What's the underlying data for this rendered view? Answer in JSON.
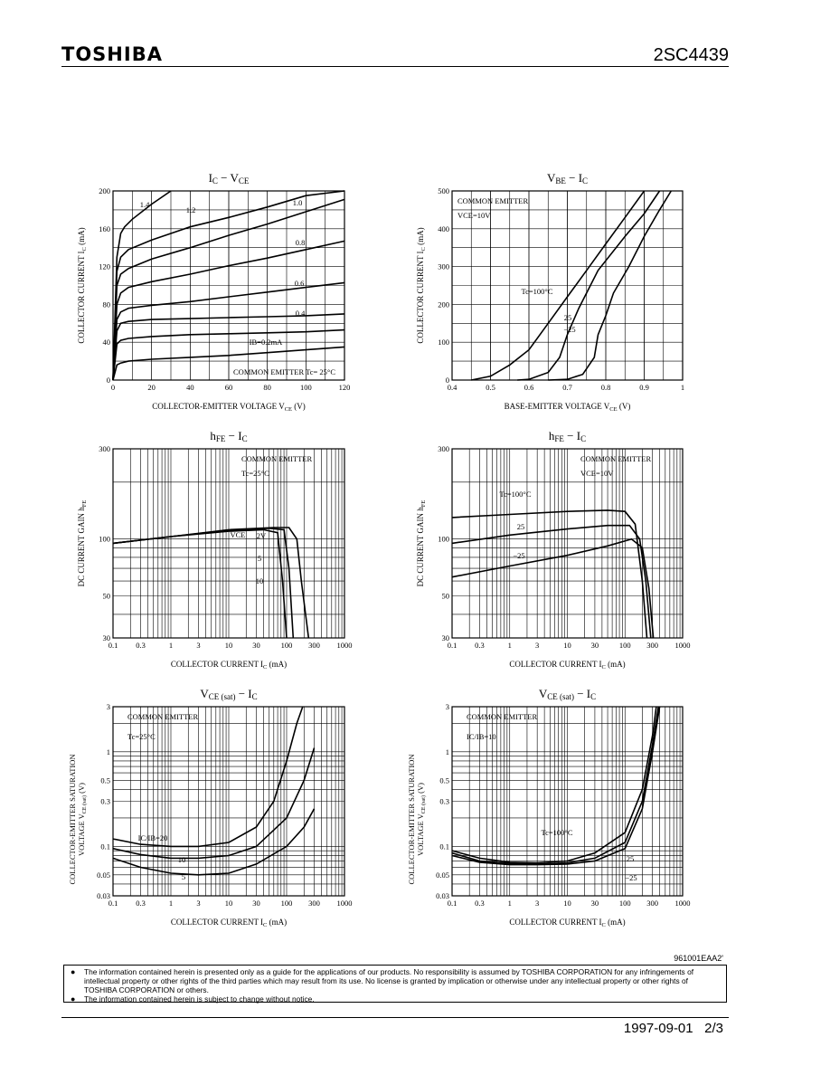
{
  "header": {
    "brand": "TOSHIBA",
    "part_number": "2SC4439"
  },
  "chart_data": [
    {
      "id": "ic-vce",
      "type": "line",
      "title_parts": [
        "I",
        "C",
        " − V",
        "CE"
      ],
      "xlabel": "COLLECTOR-EMITTER VOLTAGE  V",
      "xlabel_sub": "CE",
      "xlabel_unit": "(V)",
      "ylabel": "COLLECTOR CURRENT  I",
      "ylabel_sub": "C",
      "ylabel_unit": "(mA)",
      "xscale": "linear",
      "yscale": "linear",
      "xlim": [
        0,
        120
      ],
      "ylim": [
        0,
        200
      ],
      "xticks": [
        0,
        20,
        40,
        60,
        80,
        100,
        120
      ],
      "yticks": [
        0,
        40,
        80,
        120,
        160,
        200
      ],
      "grid": true,
      "annotation": "COMMON EMITTER   Tc= 25°C",
      "series": [
        {
          "name": "1.4",
          "x": [
            0,
            2,
            4,
            6,
            10,
            20,
            30
          ],
          "y": [
            0,
            130,
            155,
            162,
            170,
            186,
            200
          ]
        },
        {
          "name": "1.2",
          "x": [
            0,
            2,
            4,
            8,
            20,
            40,
            60,
            80,
            100,
            120
          ],
          "y": [
            0,
            115,
            130,
            138,
            148,
            162,
            172,
            183,
            195,
            200
          ]
        },
        {
          "name": "1.0",
          "x": [
            0,
            2,
            4,
            8,
            20,
            40,
            60,
            80,
            100,
            120
          ],
          "y": [
            0,
            100,
            112,
            118,
            128,
            140,
            153,
            165,
            178,
            191
          ]
        },
        {
          "name": "0.8",
          "x": [
            0,
            2,
            4,
            8,
            20,
            40,
            60,
            80,
            100,
            120
          ],
          "y": [
            0,
            80,
            92,
            98,
            104,
            112,
            121,
            129,
            138,
            147
          ]
        },
        {
          "name": "0.6",
          "x": [
            0,
            2,
            4,
            8,
            20,
            40,
            60,
            80,
            100,
            120
          ],
          "y": [
            0,
            64,
            72,
            76,
            79,
            83,
            88,
            93,
            98,
            103
          ]
        },
        {
          "name": "0.4",
          "x": [
            0,
            2,
            4,
            8,
            20,
            40,
            60,
            80,
            100,
            120
          ],
          "y": [
            0,
            52,
            60,
            62,
            64,
            65,
            66,
            67,
            68,
            70
          ]
        },
        {
          "name": "IB=0.2mA",
          "x": [
            0,
            2,
            4,
            8,
            20,
            40,
            60,
            80,
            100,
            120
          ],
          "y": [
            0,
            38,
            42,
            44,
            46,
            48,
            49,
            50,
            51,
            53
          ]
        },
        {
          "name": "",
          "x": [
            0,
            2,
            4,
            8,
            20,
            40,
            60,
            80,
            100,
            120
          ],
          "y": [
            0,
            16,
            18,
            20,
            22,
            24,
            26,
            29,
            32,
            35
          ]
        }
      ],
      "labels": [
        "1.4",
        "1.2",
        "1.0",
        "0.8",
        "0.6",
        "0.4",
        "IB=0.2mA"
      ]
    },
    {
      "id": "vbe-ic",
      "type": "line",
      "title_parts": [
        "V",
        "BE",
        " − I",
        "C"
      ],
      "xlabel": "BASE-EMITTER VOLTAGE  V",
      "xlabel_sub": "CE",
      "xlabel_unit": "(V)",
      "ylabel": "COLLECTOR CURRENT  I",
      "ylabel_sub": "C",
      "ylabel_unit": "(mA)",
      "xscale": "linear",
      "yscale": "linear",
      "xlim": [
        0.4,
        1.0
      ],
      "ylim": [
        0,
        500
      ],
      "xticks": [
        0.4,
        0.5,
        0.6,
        0.7,
        0.8,
        0.9,
        1.0
      ],
      "yticks": [
        0,
        100,
        200,
        300,
        400,
        500
      ],
      "grid": true,
      "annotation": "COMMON EMITTER",
      "annotation2": "VCE=10V",
      "series": [
        {
          "name": "Tc=100°C",
          "x": [
            0.45,
            0.5,
            0.55,
            0.6,
            0.65,
            0.7,
            0.75,
            0.8,
            0.85,
            0.9
          ],
          "y": [
            0,
            10,
            40,
            80,
            150,
            220,
            290,
            360,
            430,
            500
          ]
        },
        {
          "name": "25",
          "x": [
            0.57,
            0.6,
            0.65,
            0.68,
            0.7,
            0.73,
            0.78,
            0.85,
            0.9,
            0.94
          ],
          "y": [
            0,
            2,
            20,
            60,
            120,
            190,
            290,
            380,
            440,
            500
          ]
        },
        {
          "name": "−25",
          "x": [
            0.65,
            0.7,
            0.74,
            0.77,
            0.78,
            0.8,
            0.82,
            0.86,
            0.9,
            0.94,
            0.97
          ],
          "y": [
            0,
            2,
            15,
            60,
            120,
            170,
            230,
            300,
            380,
            450,
            500
          ]
        }
      ],
      "labels": [
        "Tc=100°C",
        "25",
        "−25"
      ]
    },
    {
      "id": "hfe-ic-vce",
      "type": "line",
      "title_parts": [
        "h",
        "FE",
        " − I",
        "C"
      ],
      "xlabel": "COLLECTOR CURRENT  I",
      "xlabel_sub": "C",
      "xlabel_unit": "(mA)",
      "ylabel": "DC CURRENT GAIN  h",
      "ylabel_sub": "FE",
      "ylabel_unit": "",
      "xscale": "log",
      "yscale": "log",
      "xlim": [
        0.1,
        1000
      ],
      "ylim": [
        30,
        300
      ],
      "xticks": [
        0.1,
        0.3,
        1,
        3,
        10,
        30,
        100,
        300,
        1000
      ],
      "xticklabels": [
        "0.1",
        "0.3",
        "1",
        "3",
        "10",
        "30",
        "100",
        "300",
        "1000"
      ],
      "yticks": [
        30,
        50,
        100,
        300
      ],
      "grid": true,
      "annotation": "COMMON EMITTER",
      "annotation2": "Tc=25°C",
      "series": [
        {
          "name": "2V",
          "x": [
            0.1,
            1,
            10,
            40,
            70,
            85,
            100
          ],
          "y": [
            95,
            103,
            110,
            112,
            108,
            60,
            30
          ]
        },
        {
          "name": "5",
          "x": [
            0.1,
            1,
            10,
            50,
            90,
            110,
            130
          ],
          "y": [
            95,
            103,
            111,
            114,
            112,
            70,
            30
          ]
        },
        {
          "name": "10",
          "x": [
            0.1,
            1,
            10,
            60,
            110,
            150,
            180,
            240
          ],
          "y": [
            95,
            103,
            112,
            115,
            115,
            100,
            60,
            30
          ]
        }
      ],
      "labels": [
        "VCE",
        "2V",
        "5",
        "10"
      ]
    },
    {
      "id": "hfe-ic-tc",
      "type": "line",
      "title_parts": [
        "h",
        "FE",
        " − I",
        "C"
      ],
      "xlabel": "COLLECTOR CURRENT  I",
      "xlabel_sub": "C",
      "xlabel_unit": "(mA)",
      "ylabel": "DC CURRENT GAIN  h",
      "ylabel_sub": "FE",
      "ylabel_unit": "",
      "xscale": "log",
      "yscale": "log",
      "xlim": [
        0.1,
        1000
      ],
      "ylim": [
        30,
        300
      ],
      "xticks": [
        0.1,
        0.3,
        1,
        3,
        10,
        30,
        100,
        300,
        1000
      ],
      "xticklabels": [
        "0.1",
        "0.3",
        "1",
        "3",
        "10",
        "30",
        "100",
        "300",
        "1000"
      ],
      "yticks": [
        30,
        50,
        100,
        300
      ],
      "grid": true,
      "annotation": "COMMON EMITTER",
      "annotation2": "VCE=10V",
      "series": [
        {
          "name": "Tc=100°C",
          "x": [
            0.1,
            1,
            10,
            50,
            100,
            150,
            200,
            240
          ],
          "y": [
            130,
            135,
            140,
            142,
            140,
            120,
            60,
            30
          ]
        },
        {
          "name": "25",
          "x": [
            0.1,
            1,
            10,
            50,
            120,
            180,
            230,
            280
          ],
          "y": [
            95,
            105,
            113,
            118,
            118,
            100,
            60,
            30
          ]
        },
        {
          "name": "−25",
          "x": [
            0.1,
            1,
            10,
            50,
            130,
            200,
            260,
            310
          ],
          "y": [
            63,
            72,
            82,
            92,
            100,
            90,
            55,
            30
          ]
        }
      ],
      "labels": [
        "Tc=100°C",
        "25",
        "−25"
      ]
    },
    {
      "id": "vcesat-ic-ratio",
      "type": "line",
      "title_parts": [
        "V",
        "CE (sat)",
        " − I",
        "C"
      ],
      "xlabel": "COLLECTOR CURRENT  I",
      "xlabel_sub": "C",
      "xlabel_unit": "(mA)",
      "ylabel": "COLLECTOR-EMITTER SATURATION",
      "ylabel2": "VOLTAGE  V",
      "ylabel2_sub": "CE (sat)",
      "ylabel2_unit": "(V)",
      "xscale": "log",
      "yscale": "log",
      "xlim": [
        0.1,
        1000
      ],
      "ylim": [
        0.03,
        3
      ],
      "xticks": [
        0.1,
        0.3,
        1,
        3,
        10,
        30,
        100,
        300,
        1000
      ],
      "xticklabels": [
        "0.1",
        "0.3",
        "1",
        "3",
        "10",
        "30",
        "100",
        "300",
        "1000"
      ],
      "yticks": [
        0.03,
        0.05,
        0.1,
        0.3,
        0.5,
        1,
        3
      ],
      "yticklabels": [
        "0.03",
        "0.05",
        "0.1",
        "0.3",
        "0.5",
        "1",
        "3"
      ],
      "grid": true,
      "annotation": "COMMON EMITTER",
      "annotation2": "Tc=25°C",
      "series": [
        {
          "name": "IC/IB=20",
          "x": [
            0.1,
            0.3,
            1,
            3,
            10,
            30,
            60,
            100,
            150,
            190
          ],
          "y": [
            0.12,
            0.105,
            0.1,
            0.1,
            0.11,
            0.16,
            0.3,
            0.8,
            2,
            3
          ]
        },
        {
          "name": "10",
          "x": [
            0.1,
            0.3,
            1,
            3,
            10,
            30,
            100,
            200,
            300
          ],
          "y": [
            0.095,
            0.082,
            0.075,
            0.075,
            0.08,
            0.1,
            0.2,
            0.5,
            1.1
          ]
        },
        {
          "name": "5",
          "x": [
            0.1,
            0.3,
            1,
            3,
            10,
            30,
            100,
            200,
            300
          ],
          "y": [
            0.075,
            0.06,
            0.052,
            0.05,
            0.052,
            0.065,
            0.1,
            0.16,
            0.25
          ]
        }
      ],
      "labels": [
        "IC/IB=20",
        "10",
        "5"
      ]
    },
    {
      "id": "vcesat-ic-tc",
      "type": "line",
      "title_parts": [
        "V",
        "CE (sat)",
        " − I",
        "C"
      ],
      "xlabel": "COLLECTOR CURRENT  I",
      "xlabel_sub": "C",
      "xlabel_unit": "(mA)",
      "ylabel": "COLLECTOR-EMITTER SATURATION",
      "ylabel2": "VOLTAGE  V",
      "ylabel2_sub": "CE (sat)",
      "ylabel2_unit": "(V)",
      "xscale": "log",
      "yscale": "log",
      "xlim": [
        0.1,
        1000
      ],
      "ylim": [
        0.03,
        3
      ],
      "xticks": [
        0.1,
        0.3,
        1,
        3,
        10,
        30,
        100,
        300,
        1000
      ],
      "xticklabels": [
        "0.1",
        "0.3",
        "1",
        "3",
        "10",
        "30",
        "100",
        "300",
        "1000"
      ],
      "yticks": [
        0.03,
        0.05,
        0.1,
        0.3,
        0.5,
        1,
        3
      ],
      "yticklabels": [
        "0.03",
        "0.05",
        "0.1",
        "0.3",
        "0.5",
        "1",
        "3"
      ],
      "grid": true,
      "annotation": "COMMON EMITTER",
      "annotation2": "IC/IB=10",
      "series": [
        {
          "name": "Tc=100°C",
          "x": [
            0.1,
            0.3,
            1,
            3,
            10,
            30,
            100,
            200,
            300,
            350
          ],
          "y": [
            0.09,
            0.075,
            0.068,
            0.067,
            0.07,
            0.085,
            0.14,
            0.4,
            1.5,
            3
          ]
        },
        {
          "name": "25",
          "x": [
            0.1,
            0.3,
            1,
            3,
            10,
            30,
            100,
            200,
            300,
            380
          ],
          "y": [
            0.085,
            0.07,
            0.066,
            0.065,
            0.067,
            0.075,
            0.11,
            0.3,
            1.2,
            3
          ]
        },
        {
          "name": "−25",
          "x": [
            0.1,
            0.3,
            1,
            3,
            10,
            30,
            100,
            200,
            300,
            400
          ],
          "y": [
            0.08,
            0.068,
            0.064,
            0.064,
            0.065,
            0.07,
            0.095,
            0.25,
            1,
            3
          ]
        }
      ],
      "labels": [
        "Tc=100°C",
        "25",
        "−25"
      ]
    }
  ],
  "doc_code": "961001EAA2'",
  "disclaimer": [
    "The information contained herein is presented only as a guide for the applications of our products. No responsibility is assumed by TOSHIBA CORPORATION for any infringements of intellectual property or other rights of the third parties which may result from its use. No license is granted by implication or otherwise under any intellectual property or other rights of TOSHIBA CORPORATION or others.",
    "The information contained herein is subject to change without notice."
  ],
  "footer": {
    "date": "1997-09-01",
    "page": "2/3"
  }
}
